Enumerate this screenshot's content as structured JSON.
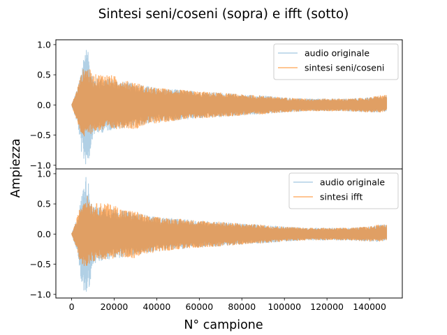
{
  "figure": {
    "suptitle": "Sintesi seni/coseni (sopra) e ifft (sotto)",
    "ylabel": "Ampiezza",
    "xlabel": "N° campione"
  },
  "colors": {
    "original": "#1f77b4",
    "synthesis": "#ff7f0e"
  },
  "chart_data": [
    {
      "type": "line",
      "title": "",
      "xlim": [
        -7400,
        155400
      ],
      "ylim": [
        -1.06,
        1.08
      ],
      "xticks": [],
      "yticks": [
        -1.0,
        -0.5,
        0.0,
        0.5,
        1.0
      ],
      "ytick_labels": [
        "−1.0",
        "−0.5",
        "0.0",
        "0.5",
        "1.0"
      ],
      "legend_position": "upper right",
      "x_range": [
        0,
        148000
      ],
      "series": [
        {
          "name": "audio originale",
          "color": "#1f77b4",
          "alpha": 0.35,
          "envelope": {
            "x": [
              0,
              3000,
              5000,
              6500,
              8000,
              10000,
              15000,
              20000,
              25000,
              30000,
              40000,
              50000,
              60000,
              70000,
              80000,
              90000,
              100000,
              110000,
              120000,
              130000,
              140000,
              145000,
              148000
            ],
            "upper": [
              0.0,
              0.3,
              0.7,
              0.98,
              0.85,
              0.45,
              0.45,
              0.42,
              0.38,
              0.35,
              0.28,
              0.25,
              0.22,
              0.2,
              0.17,
              0.15,
              0.12,
              0.1,
              0.1,
              0.1,
              0.12,
              0.15,
              0.15
            ],
            "lower": [
              0.0,
              -0.35,
              -0.9,
              -1.0,
              -0.95,
              -0.5,
              -0.45,
              -0.4,
              -0.38,
              -0.35,
              -0.28,
              -0.25,
              -0.22,
              -0.2,
              -0.17,
              -0.15,
              -0.12,
              -0.1,
              -0.1,
              -0.1,
              -0.12,
              -0.12,
              -0.1
            ]
          }
        },
        {
          "name": "sintesi seni/coseni",
          "color": "#ff7f0e",
          "alpha": 0.6,
          "envelope": {
            "x": [
              0,
              2000,
              4000,
              6000,
              8000,
              10000,
              15000,
              20000,
              25000,
              30000,
              35000,
              40000,
              50000,
              60000,
              70000,
              80000,
              90000,
              100000,
              110000,
              120000,
              130000,
              140000,
              145000,
              148000
            ],
            "upper": [
              0.0,
              0.2,
              0.45,
              0.65,
              0.62,
              0.5,
              0.52,
              0.48,
              0.4,
              0.38,
              0.3,
              0.28,
              0.25,
              0.22,
              0.2,
              0.17,
              0.15,
              0.12,
              0.1,
              0.1,
              0.1,
              0.12,
              0.16,
              0.16
            ],
            "lower": [
              0.0,
              -0.22,
              -0.45,
              -0.55,
              -0.5,
              -0.45,
              -0.42,
              -0.4,
              -0.38,
              -0.4,
              -0.32,
              -0.3,
              -0.25,
              -0.22,
              -0.2,
              -0.17,
              -0.15,
              -0.12,
              -0.1,
              -0.1,
              -0.1,
              -0.12,
              -0.12,
              -0.1
            ]
          }
        }
      ]
    },
    {
      "type": "line",
      "title": "",
      "xlim": [
        -7400,
        155400
      ],
      "ylim": [
        -1.06,
        1.08
      ],
      "xticks": [
        0,
        20000,
        40000,
        60000,
        80000,
        100000,
        120000,
        140000
      ],
      "xtick_labels": [
        "0",
        "20000",
        "40000",
        "60000",
        "80000",
        "100000",
        "120000",
        "140000"
      ],
      "yticks": [
        -1.0,
        -0.5,
        0.0,
        0.5,
        1.0
      ],
      "ytick_labels": [
        "−1.0",
        "−0.5",
        "0.0",
        "0.5",
        "1.0"
      ],
      "legend_position": "upper right",
      "x_range": [
        0,
        148000
      ],
      "series": [
        {
          "name": "audio originale",
          "color": "#1f77b4",
          "alpha": 0.35,
          "envelope": {
            "x": [
              0,
              3000,
              5000,
              6500,
              8000,
              10000,
              15000,
              20000,
              25000,
              30000,
              40000,
              50000,
              60000,
              70000,
              80000,
              90000,
              100000,
              110000,
              120000,
              130000,
              140000,
              145000,
              148000
            ],
            "upper": [
              0.0,
              0.3,
              0.7,
              0.98,
              0.85,
              0.45,
              0.45,
              0.42,
              0.38,
              0.35,
              0.28,
              0.25,
              0.22,
              0.2,
              0.17,
              0.15,
              0.12,
              0.1,
              0.1,
              0.1,
              0.12,
              0.15,
              0.15
            ],
            "lower": [
              0.0,
              -0.35,
              -0.9,
              -1.0,
              -0.95,
              -0.5,
              -0.45,
              -0.4,
              -0.38,
              -0.35,
              -0.28,
              -0.25,
              -0.22,
              -0.2,
              -0.17,
              -0.15,
              -0.12,
              -0.1,
              -0.1,
              -0.1,
              -0.12,
              -0.12,
              -0.1
            ]
          }
        },
        {
          "name": "sintesi ifft",
          "color": "#ff7f0e",
          "alpha": 0.6,
          "envelope": {
            "x": [
              0,
              2000,
              4000,
              6000,
              8000,
              10000,
              15000,
              20000,
              25000,
              30000,
              35000,
              40000,
              50000,
              60000,
              70000,
              80000,
              90000,
              100000,
              110000,
              120000,
              130000,
              140000,
              145000,
              148000
            ],
            "upper": [
              0.0,
              0.2,
              0.45,
              0.65,
              0.62,
              0.5,
              0.52,
              0.48,
              0.4,
              0.38,
              0.3,
              0.28,
              0.25,
              0.22,
              0.2,
              0.17,
              0.15,
              0.12,
              0.1,
              0.1,
              0.1,
              0.12,
              0.16,
              0.16
            ],
            "lower": [
              0.0,
              -0.22,
              -0.45,
              -0.55,
              -0.5,
              -0.45,
              -0.42,
              -0.4,
              -0.38,
              -0.4,
              -0.32,
              -0.3,
              -0.25,
              -0.22,
              -0.2,
              -0.17,
              -0.15,
              -0.12,
              -0.1,
              -0.1,
              -0.1,
              -0.12,
              -0.12,
              -0.1
            ]
          }
        }
      ]
    }
  ]
}
